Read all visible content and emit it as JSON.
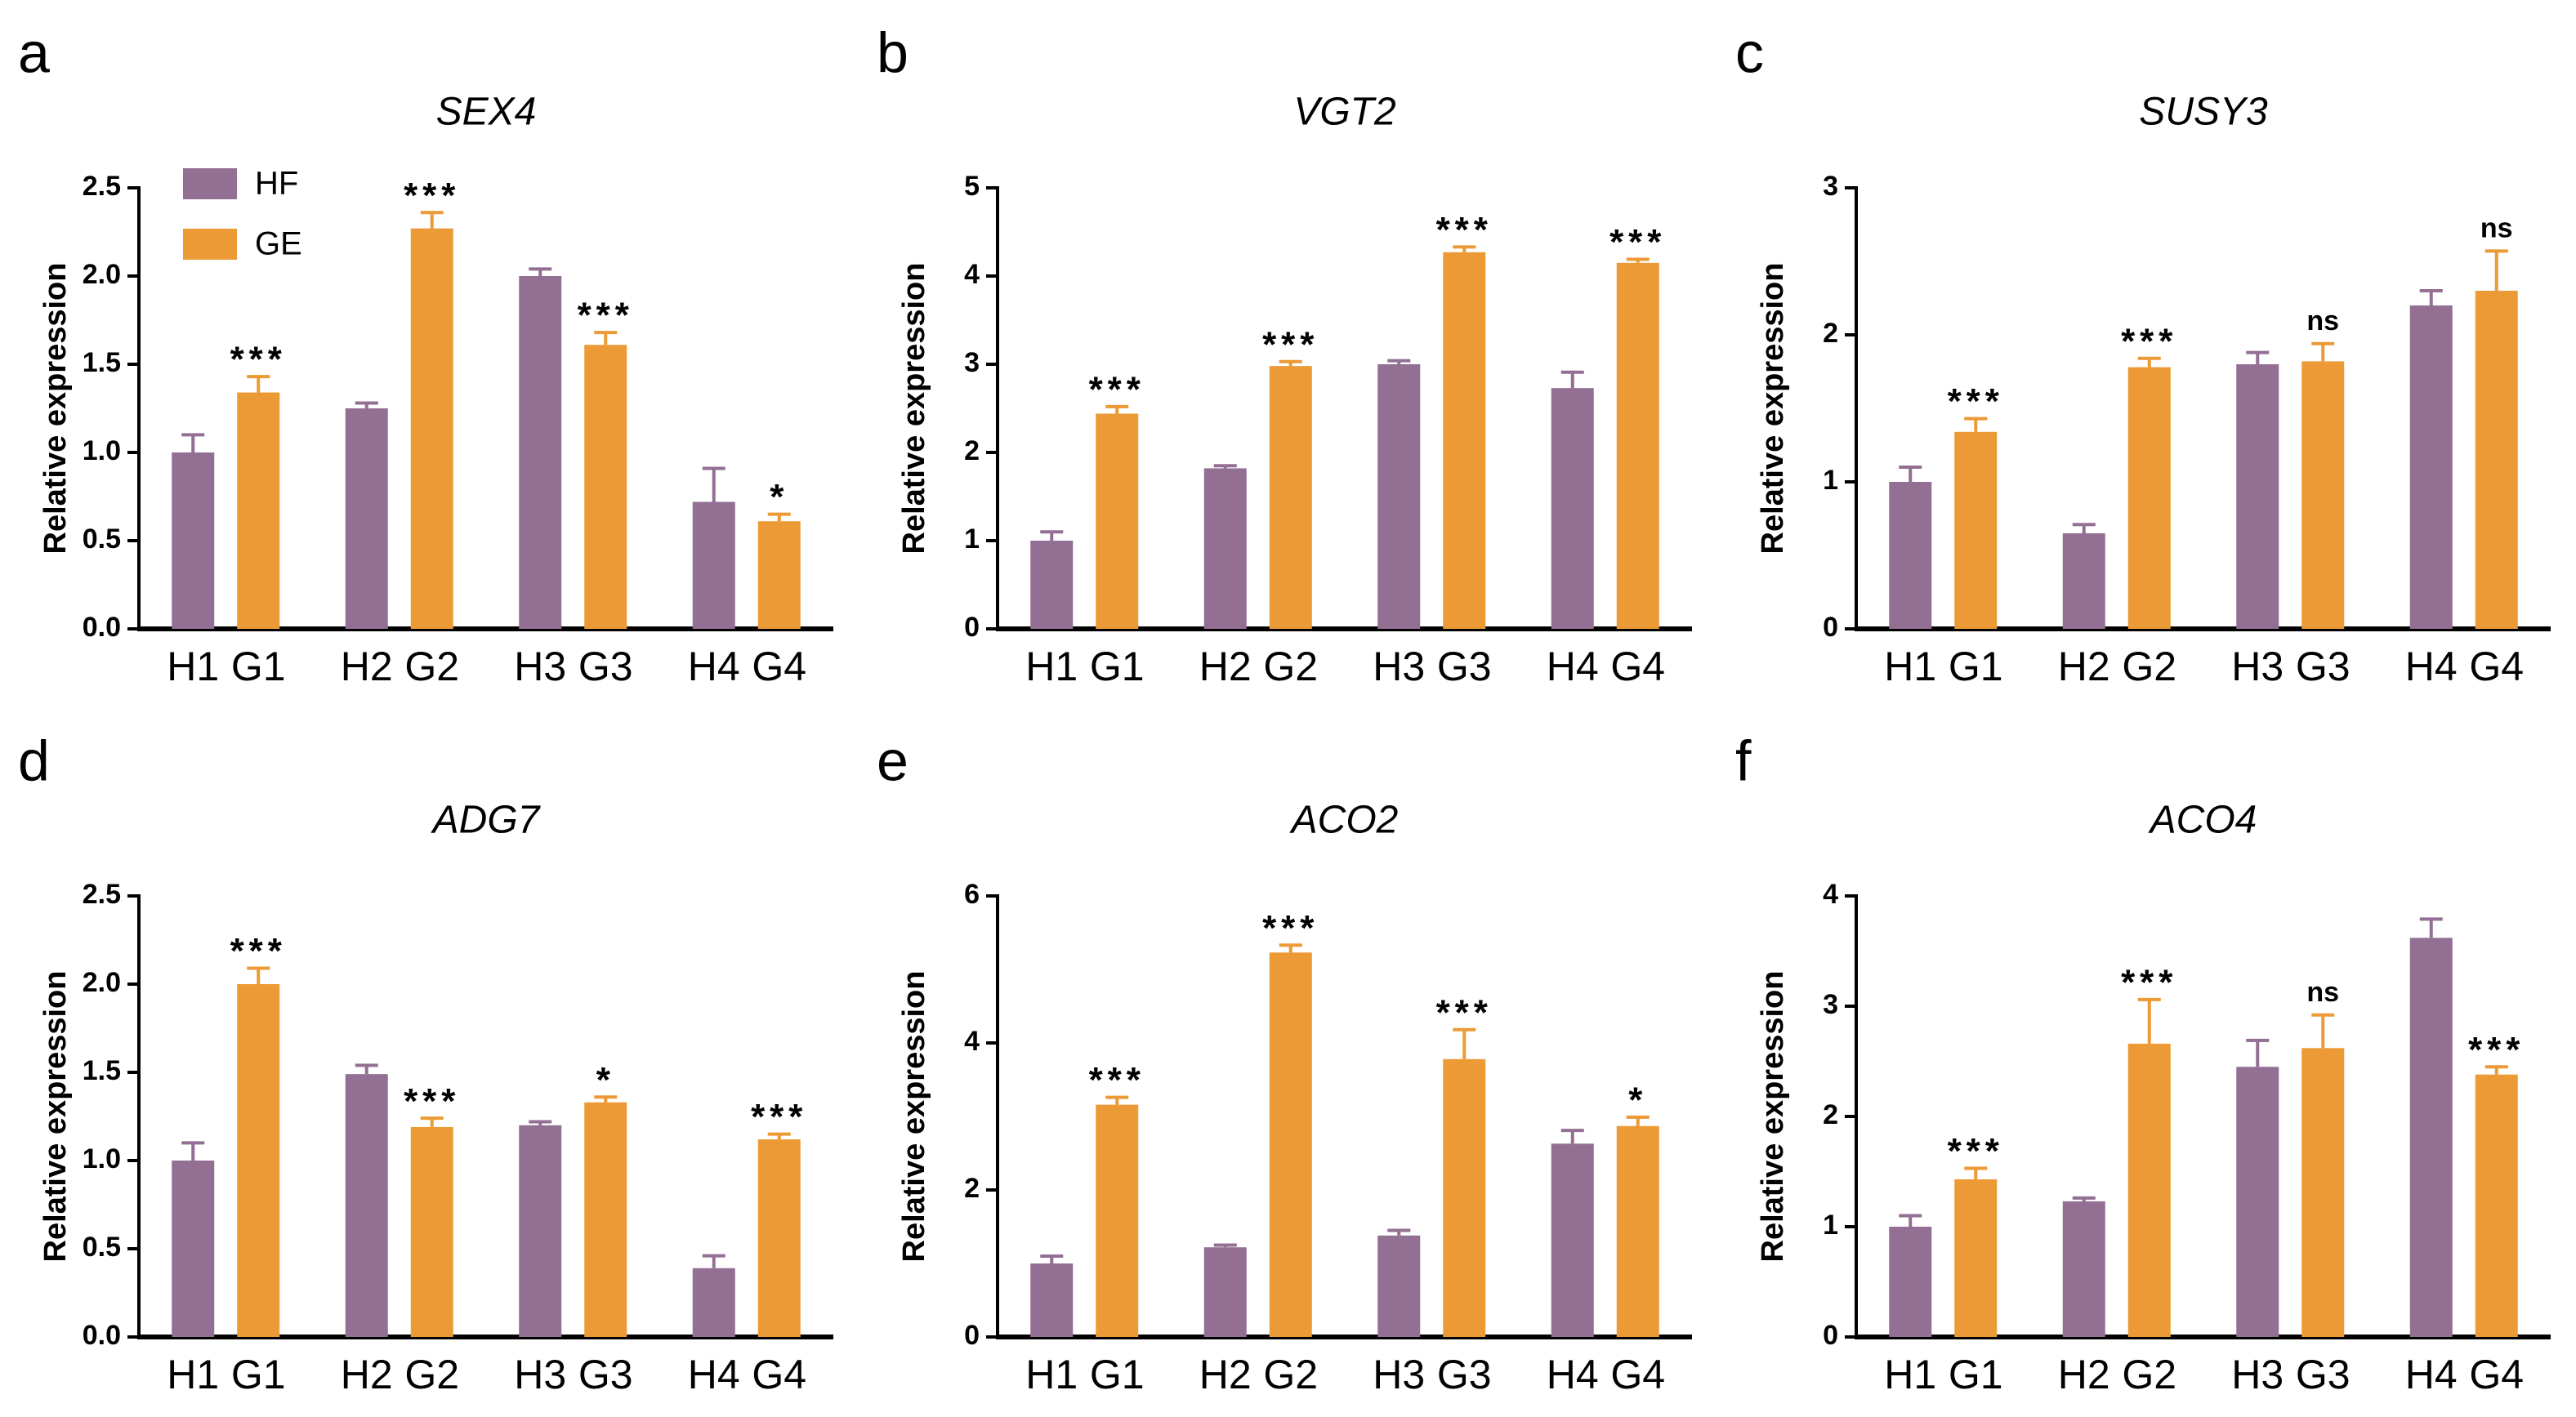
{
  "chart_data": [
    {
      "type": "bar",
      "panel": "a",
      "title": "SEX4",
      "y_label": "Relative expression",
      "legend": true,
      "ylim": [
        0,
        2.5
      ],
      "yticks": [
        {
          "value": 0,
          "label": "0.0"
        },
        0.5,
        {
          "value": 1,
          "label": "1.0"
        },
        1.5,
        {
          "value": 2,
          "label": "2.0"
        },
        2.5
      ],
      "series": [
        {
          "name": "HF",
          "color": "#926f93",
          "labels": [
            "H1",
            "H2",
            "H3",
            "H4"
          ],
          "values": [
            1.0,
            1.25,
            2.0,
            0.72
          ],
          "errors": [
            0.1,
            0.03,
            0.04,
            0.19
          ]
        },
        {
          "name": "GE",
          "color": "#ec9a35",
          "labels": [
            "G1",
            "G2",
            "G3",
            "G4"
          ],
          "values": [
            1.34,
            2.27,
            1.61,
            0.61
          ],
          "errors": [
            0.09,
            0.09,
            0.07,
            0.04
          ],
          "annotations": [
            "***",
            "***",
            "***",
            "*"
          ]
        }
      ]
    },
    {
      "type": "bar",
      "panel": "b",
      "title": "VGT2",
      "y_label": "Relative expression",
      "legend": false,
      "ylim": [
        0,
        5
      ],
      "yticks": [
        0,
        1,
        2,
        3,
        4,
        5
      ],
      "series": [
        {
          "name": "HF",
          "color": "#926f93",
          "labels": [
            "H1",
            "H2",
            "H3",
            "H4"
          ],
          "values": [
            1.0,
            1.82,
            3.0,
            2.73
          ],
          "errors": [
            0.1,
            0.03,
            0.04,
            0.18
          ]
        },
        {
          "name": "GE",
          "color": "#ec9a35",
          "labels": [
            "G1",
            "G2",
            "G3",
            "G4"
          ],
          "values": [
            2.44,
            2.98,
            4.27,
            4.15
          ],
          "errors": [
            0.08,
            0.05,
            0.06,
            0.04
          ],
          "annotations": [
            "***",
            "***",
            "***",
            "***"
          ]
        }
      ]
    },
    {
      "type": "bar",
      "panel": "c",
      "title": "SUSY3",
      "y_label": "Relative expression",
      "legend": false,
      "ylim": [
        0,
        3
      ],
      "yticks": [
        0,
        1,
        2,
        3
      ],
      "series": [
        {
          "name": "HF",
          "color": "#926f93",
          "labels": [
            "H1",
            "H2",
            "H3",
            "H4"
          ],
          "values": [
            1.0,
            0.65,
            1.8,
            2.2
          ],
          "errors": [
            0.1,
            0.06,
            0.08,
            0.1
          ]
        },
        {
          "name": "GE",
          "color": "#ec9a35",
          "labels": [
            "G1",
            "G2",
            "G3",
            "G4"
          ],
          "values": [
            1.34,
            1.78,
            1.82,
            2.3
          ],
          "errors": [
            0.09,
            0.06,
            0.12,
            0.27
          ],
          "annotations": [
            "***",
            "***",
            "ns",
            "ns"
          ]
        }
      ]
    },
    {
      "type": "bar",
      "panel": "d",
      "title": "ADG7",
      "y_label": "Relative expression",
      "legend": false,
      "ylim": [
        0,
        2.5
      ],
      "yticks": [
        {
          "value": 0,
          "label": "0.0"
        },
        0.5,
        {
          "value": 1,
          "label": "1.0"
        },
        1.5,
        {
          "value": 2,
          "label": "2.0"
        },
        2.5
      ],
      "series": [
        {
          "name": "HF",
          "color": "#926f93",
          "labels": [
            "H1",
            "H2",
            "H3",
            "H4"
          ],
          "values": [
            1.0,
            1.49,
            1.2,
            0.39
          ],
          "errors": [
            0.1,
            0.05,
            0.02,
            0.07
          ]
        },
        {
          "name": "GE",
          "color": "#ec9a35",
          "labels": [
            "G1",
            "G2",
            "G3",
            "G4"
          ],
          "values": [
            2.0,
            1.19,
            1.33,
            1.12
          ],
          "errors": [
            0.09,
            0.05,
            0.03,
            0.03
          ],
          "annotations": [
            "***",
            "***",
            "*",
            "***"
          ]
        }
      ]
    },
    {
      "type": "bar",
      "panel": "e",
      "title": "ACO2",
      "y_label": "Relative expression",
      "legend": false,
      "ylim": [
        0,
        6
      ],
      "yticks": [
        0,
        2,
        4,
        6
      ],
      "series": [
        {
          "name": "HF",
          "color": "#926f93",
          "labels": [
            "H1",
            "H2",
            "H3",
            "H4"
          ],
          "values": [
            1.0,
            1.22,
            1.38,
            2.63
          ],
          "errors": [
            0.1,
            0.03,
            0.07,
            0.18
          ]
        },
        {
          "name": "GE",
          "color": "#ec9a35",
          "labels": [
            "G1",
            "G2",
            "G3",
            "G4"
          ],
          "values": [
            3.16,
            5.23,
            3.78,
            2.87
          ],
          "errors": [
            0.1,
            0.1,
            0.4,
            0.12
          ],
          "annotations": [
            "***",
            "***",
            "***",
            "*"
          ]
        }
      ]
    },
    {
      "type": "bar",
      "panel": "f",
      "title": "ACO4",
      "y_label": "Relative expression",
      "legend": false,
      "ylim": [
        0,
        4
      ],
      "yticks": [
        0,
        1,
        2,
        3,
        4
      ],
      "series": [
        {
          "name": "HF",
          "color": "#926f93",
          "labels": [
            "H1",
            "H2",
            "H3",
            "H4"
          ],
          "values": [
            1.0,
            1.23,
            2.45,
            3.62
          ],
          "errors": [
            0.1,
            0.03,
            0.24,
            0.17
          ]
        },
        {
          "name": "GE",
          "color": "#ec9a35",
          "labels": [
            "G1",
            "G2",
            "G3",
            "G4"
          ],
          "values": [
            1.43,
            2.66,
            2.62,
            2.38
          ],
          "errors": [
            0.1,
            0.4,
            0.3,
            0.07
          ],
          "annotations": [
            "***",
            "***",
            "ns",
            "***"
          ]
        }
      ]
    }
  ]
}
